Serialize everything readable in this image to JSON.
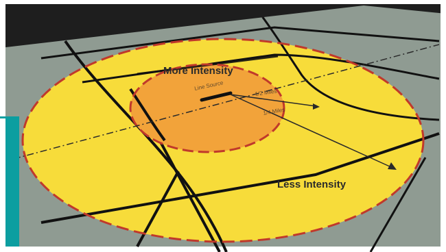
{
  "diagram": {
    "inner_zone_label": "More Intensity",
    "outer_zone_label": "Less Intensity",
    "inner_zone_color": "#f2a33a",
    "outer_zone_color": "#f7dc3a",
    "boundary_color": "#c0392b",
    "ground_color": "#8f9b92",
    "accent_bar_color": "#0c9ea0",
    "small_labels": [
      "Line Source",
      "1/2 Miles",
      "1/4 Miles"
    ]
  }
}
